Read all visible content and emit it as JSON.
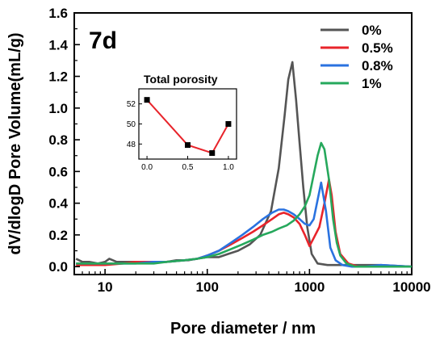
{
  "chart_data": [
    {
      "type": "line",
      "panel_label": "7d",
      "xlabel": "Pore diameter / nm",
      "ylabel": "dV/dlogD Pore Volume(mL/g)",
      "xscale": "log",
      "xlim": [
        5,
        10000
      ],
      "ylim": [
        -0.05,
        1.6
      ],
      "x_ticks": [
        10,
        100,
        1000,
        10000
      ],
      "x_tick_labels": [
        "10",
        "100",
        "1000",
        "10000"
      ],
      "y_ticks": [
        0.0,
        0.2,
        0.4,
        0.6,
        0.8,
        1.0,
        1.2,
        1.4,
        1.6
      ],
      "y_tick_labels": [
        "0.0",
        "0.2",
        "0.4",
        "0.6",
        "0.8",
        "1.0",
        "1.2",
        "1.4",
        "1.6"
      ],
      "legend_position": "top-right",
      "series": [
        {
          "name": "0%",
          "color": "#555555",
          "x": [
            5.2,
            6,
            7,
            8.5,
            10,
            11,
            13,
            16,
            20,
            25,
            32,
            40,
            50,
            65,
            80,
            100,
            130,
            160,
            200,
            260,
            330,
            420,
            500,
            570,
            620,
            680,
            740,
            800,
            870,
            950,
            1050,
            1200,
            1500,
            2000,
            3000,
            5000,
            10000
          ],
          "y": [
            0.05,
            0.03,
            0.03,
            0.02,
            0.03,
            0.05,
            0.03,
            0.03,
            0.03,
            0.03,
            0.03,
            0.03,
            0.04,
            0.04,
            0.05,
            0.06,
            0.06,
            0.08,
            0.1,
            0.14,
            0.2,
            0.35,
            0.62,
            0.95,
            1.18,
            1.29,
            1.05,
            0.78,
            0.5,
            0.25,
            0.08,
            0.02,
            0.01,
            0.01,
            0.01,
            0.01,
            0.0
          ]
        },
        {
          "name": "0.5%",
          "color": "#e8242b",
          "x": [
            5.2,
            7,
            10,
            15,
            20,
            30,
            40,
            60,
            80,
            100,
            130,
            170,
            220,
            280,
            350,
            430,
            500,
            560,
            620,
            700,
            800,
            900,
            1000,
            1100,
            1250,
            1400,
            1550,
            1650,
            1800,
            2000,
            2400,
            3000,
            5000,
            10000
          ],
          "y": [
            0.01,
            0.01,
            0.01,
            0.02,
            0.03,
            0.03,
            0.03,
            0.04,
            0.05,
            0.07,
            0.1,
            0.14,
            0.18,
            0.22,
            0.26,
            0.3,
            0.33,
            0.34,
            0.33,
            0.31,
            0.27,
            0.2,
            0.13,
            0.18,
            0.25,
            0.4,
            0.55,
            0.45,
            0.22,
            0.08,
            0.02,
            0.0,
            0.0,
            0.0
          ]
        },
        {
          "name": "0.8%",
          "color": "#2a72e0",
          "x": [
            5.2,
            7,
            10,
            15,
            20,
            30,
            40,
            60,
            80,
            100,
            130,
            170,
            220,
            280,
            350,
            430,
            500,
            560,
            620,
            700,
            800,
            900,
            1000,
            1100,
            1200,
            1300,
            1450,
            1600,
            1800,
            2100,
            2600,
            3500,
            5000,
            10000
          ],
          "y": [
            0.02,
            0.02,
            0.02,
            0.02,
            0.02,
            0.03,
            0.03,
            0.04,
            0.05,
            0.07,
            0.1,
            0.15,
            0.2,
            0.25,
            0.3,
            0.34,
            0.36,
            0.36,
            0.35,
            0.33,
            0.3,
            0.27,
            0.26,
            0.3,
            0.42,
            0.53,
            0.35,
            0.12,
            0.04,
            0.01,
            0.0,
            0.0,
            0.01,
            0.0
          ]
        },
        {
          "name": "1%",
          "color": "#26a85c",
          "x": [
            5.2,
            7,
            10,
            15,
            20,
            30,
            40,
            60,
            80,
            100,
            130,
            170,
            220,
            280,
            350,
            430,
            500,
            600,
            700,
            800,
            900,
            1000,
            1100,
            1200,
            1300,
            1400,
            1550,
            1700,
            1850,
            2000,
            2300,
            2800,
            4000,
            6000,
            10000
          ],
          "y": [
            0.02,
            0.02,
            0.02,
            0.02,
            0.02,
            0.02,
            0.03,
            0.04,
            0.05,
            0.06,
            0.08,
            0.11,
            0.14,
            0.17,
            0.2,
            0.22,
            0.24,
            0.26,
            0.29,
            0.33,
            0.38,
            0.45,
            0.58,
            0.7,
            0.78,
            0.74,
            0.55,
            0.3,
            0.15,
            0.07,
            0.02,
            0.0,
            0.0,
            0.0,
            0.0
          ]
        }
      ]
    },
    {
      "type": "line",
      "title": "Total porosity",
      "xlim": [
        -0.1,
        1.1
      ],
      "ylim": [
        46.5,
        53.5
      ],
      "x_ticks": [
        0.0,
        0.5,
        1.0
      ],
      "x_tick_labels": [
        "0.0",
        "0.5",
        "1.0"
      ],
      "y_ticks": [
        48,
        50,
        52
      ],
      "y_tick_labels": [
        "48",
        "50",
        "52"
      ],
      "line_color": "#e8242b",
      "marker_color": "#000000",
      "points": {
        "x": [
          0.0,
          0.5,
          0.8,
          1.0
        ],
        "y": [
          52.4,
          47.9,
          47.1,
          50.0
        ]
      }
    }
  ]
}
